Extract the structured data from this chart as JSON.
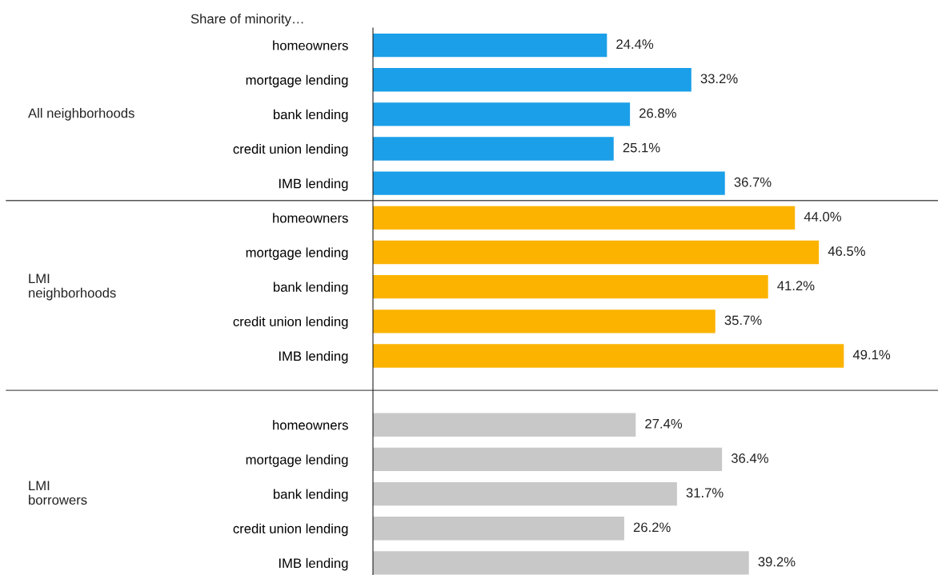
{
  "chart_data": {
    "type": "bar",
    "orientation": "horizontal",
    "title": "Share of minority…",
    "categories": [
      "homeowners",
      "mortgage lending",
      "bank lending",
      "credit union lending",
      "IMB lending",
      "homeowners",
      "mortgage lending",
      "bank lending",
      "credit union lending",
      "IMB lending",
      null,
      "homeowners",
      "mortgage lending",
      "bank lending",
      "credit union lending",
      "IMB lending"
    ],
    "series": [
      {
        "color": "#1a9fe8",
        "values": [
          24.4,
          33.2,
          26.8,
          25.1,
          36.7,
          null,
          null,
          null,
          null,
          null,
          null,
          null,
          null,
          null,
          null,
          null
        ],
        "value_labels": [
          "24.4%",
          "33.2%",
          "26.8%",
          "25.1%",
          "36.7%",
          null,
          null,
          null,
          null,
          null,
          null,
          null,
          null,
          null,
          null,
          null
        ]
      },
      {
        "color": "#fbb300",
        "values": [
          null,
          null,
          null,
          null,
          null,
          44.0,
          46.5,
          41.2,
          35.7,
          49.1,
          null,
          null,
          null,
          null,
          null,
          null
        ],
        "value_labels": [
          null,
          null,
          null,
          null,
          null,
          "44.0%",
          "46.5%",
          "41.2%",
          "35.7%",
          "49.1%",
          null,
          null,
          null,
          null,
          null,
          null
        ]
      },
      {
        "color": "#c8c8c8",
        "values": [
          null,
          null,
          null,
          null,
          null,
          null,
          null,
          null,
          null,
          null,
          null,
          27.4,
          36.4,
          31.7,
          26.2,
          39.2
        ],
        "value_labels": [
          null,
          null,
          null,
          null,
          null,
          null,
          null,
          null,
          null,
          null,
          null,
          "27.4%",
          "36.4%",
          "31.7%",
          "26.2%",
          "39.2%"
        ]
      }
    ],
    "annotations": [
      "All neighborhoods",
      "LMI\nneighborhoods",
      "LMI\nborrowers"
    ],
    "legend": false
  }
}
